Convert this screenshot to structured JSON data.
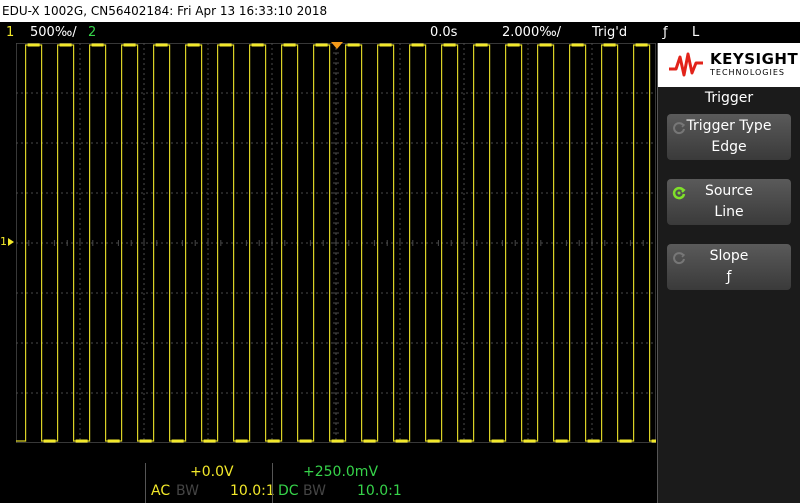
{
  "title": "EDU-X 1002G, CN56402184: Fri Apr 13 16:33:10 2018",
  "status": {
    "ch1_number": "1",
    "ch1_scale": "500‰/",
    "ch2_number": "2",
    "delay": "0.0s",
    "timebase": "2.000‰/",
    "trigger_state": "Trig'd",
    "trigger_slope_symbol": "ƒ",
    "trigger_source": "L"
  },
  "ground_marker": "1",
  "brand": {
    "name": "KEYSIGHT",
    "sub": "TECHNOLOGIES"
  },
  "menu": {
    "title": "Trigger",
    "softkeys": [
      {
        "label": "Trigger Type",
        "value": "Edge",
        "active": false
      },
      {
        "label": "Source",
        "value": "Line",
        "active": true
      },
      {
        "label": "Slope",
        "value": "ƒ",
        "active": false
      }
    ]
  },
  "channels": [
    {
      "offset": "+0.0V",
      "coupling": "AC",
      "bw": "BW",
      "probe": "10.0:1",
      "color": "#f2e82a"
    },
    {
      "offset": "+250.0mV",
      "coupling": "DC",
      "bw": "BW",
      "probe": "10.0:1",
      "color": "#36d34a"
    }
  ],
  "colors": {
    "ch1": "#f2e82a",
    "ch2": "#36d34a",
    "trigger_marker": "#f39a1a",
    "grid": "#4a4a4a"
  },
  "waveform": {
    "channel": 1,
    "shape": "square",
    "high_level_div": 4,
    "low_level_div": -4,
    "cycles_on_screen": 20
  }
}
